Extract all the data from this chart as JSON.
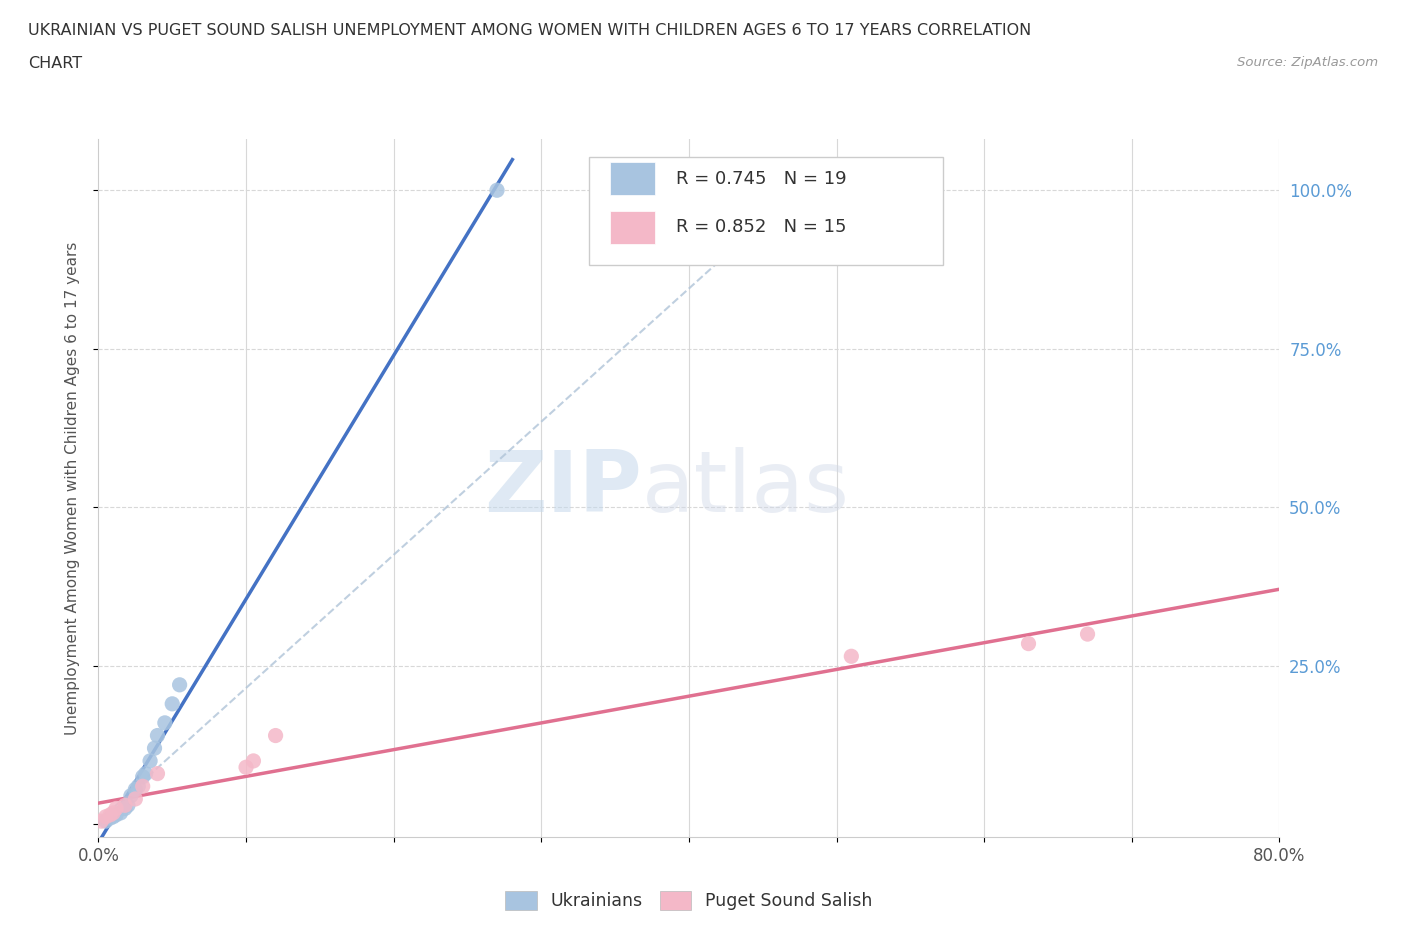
{
  "title_line1": "UKRAINIAN VS PUGET SOUND SALISH UNEMPLOYMENT AMONG WOMEN WITH CHILDREN AGES 6 TO 17 YEARS CORRELATION",
  "title_line2": "CHART",
  "source_text": "Source: ZipAtlas.com",
  "ylabel": "Unemployment Among Women with Children Ages 6 to 17 years",
  "xlim": [
    0.0,
    0.8
  ],
  "ylim": [
    -0.02,
    1.08
  ],
  "x_ticks": [
    0.0,
    0.1,
    0.2,
    0.3,
    0.4,
    0.5,
    0.6,
    0.7,
    0.8
  ],
  "x_tick_labels": [
    "0.0%",
    "",
    "",
    "",
    "",
    "",
    "",
    "",
    "80.0%"
  ],
  "y_ticks": [
    0.0,
    0.25,
    0.5,
    0.75,
    1.0
  ],
  "y_tick_labels_right": [
    "",
    "25.0%",
    "50.0%",
    "75.0%",
    "100.0%"
  ],
  "watermark_zip": "ZIP",
  "watermark_atlas": "atlas",
  "ukrainian_color": "#a8c4e0",
  "ukrainian_line_color": "#4472c4",
  "puget_color": "#f4b8c8",
  "puget_line_color": "#e07090",
  "legend_R1": "0.745",
  "legend_N1": "19",
  "legend_R2": "0.852",
  "legend_N2": "15",
  "ukrainian_x": [
    0.005,
    0.008,
    0.01,
    0.012,
    0.015,
    0.018,
    0.02,
    0.022,
    0.025,
    0.027,
    0.03,
    0.032,
    0.035,
    0.038,
    0.04,
    0.045,
    0.05,
    0.055,
    0.27
  ],
  "ukrainian_y": [
    0.005,
    0.01,
    0.012,
    0.015,
    0.018,
    0.025,
    0.03,
    0.045,
    0.055,
    0.06,
    0.075,
    0.08,
    0.1,
    0.12,
    0.14,
    0.16,
    0.19,
    0.22,
    1.0
  ],
  "puget_x": [
    0.002,
    0.005,
    0.008,
    0.01,
    0.012,
    0.018,
    0.025,
    0.03,
    0.04,
    0.1,
    0.105,
    0.12,
    0.51,
    0.63,
    0.67
  ],
  "puget_y": [
    0.005,
    0.012,
    0.015,
    0.018,
    0.025,
    0.03,
    0.04,
    0.06,
    0.08,
    0.09,
    0.1,
    0.14,
    0.265,
    0.285,
    0.3
  ],
  "background_color": "#ffffff",
  "grid_color": "#d8d8d8",
  "dashed_line_color": "#b0c4d8",
  "right_tick_color": "#5b9bd5",
  "title_color": "#333333",
  "source_color": "#999999",
  "label_color": "#555555"
}
